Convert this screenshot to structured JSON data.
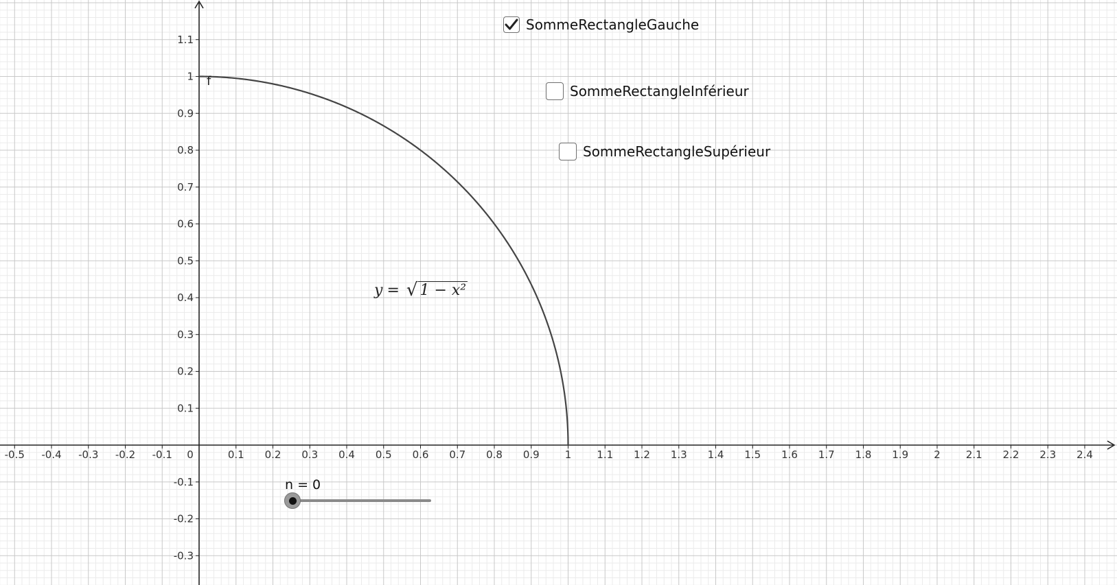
{
  "chart_data": {
    "type": "line",
    "function_label": "f",
    "equation": {
      "lhs": "y",
      "eq": "=",
      "radicand": "1 − x²"
    },
    "x_ticks": [
      "-0.5",
      "-0.4",
      "-0.3",
      "-0.2",
      "-0.1",
      "0",
      "0.1",
      "0.2",
      "0.3",
      "0.4",
      "0.5",
      "0.6",
      "0.7",
      "0.8",
      "0.9",
      "1",
      "1.1",
      "1.2",
      "1.3",
      "1.4",
      "1.5",
      "1.6",
      "1.7",
      "1.8",
      "1.9",
      "2",
      "2.1",
      "2.2",
      "2.3",
      "2.4"
    ],
    "y_ticks": [
      "1.1",
      "1",
      "0.9",
      "0.8",
      "0.7",
      "0.6",
      "0.5",
      "0.4",
      "0.3",
      "0.2",
      "0.1",
      "-0.1",
      "-0.2",
      "-0.3"
    ],
    "xlim": [
      -0.54,
      2.6
    ],
    "ylim": [
      -0.38,
      1.2
    ],
    "grid": true,
    "series": [
      {
        "x": [
          0,
          0.1,
          0.2,
          0.3,
          0.4,
          0.5,
          0.6,
          0.7,
          0.8,
          0.9,
          0.95,
          0.98,
          1
        ],
        "y": [
          1,
          0.995,
          0.98,
          0.954,
          0.917,
          0.866,
          0.8,
          0.714,
          0.6,
          0.436,
          0.312,
          0.199,
          0
        ]
      }
    ]
  },
  "checkboxes": [
    {
      "label": "SommeRectangleGauche",
      "checked": true
    },
    {
      "label": "SommeRectangleInférieur",
      "checked": false
    },
    {
      "label": "SommeRectangleSupérieur",
      "checked": false
    }
  ],
  "slider": {
    "label": "n = 0",
    "value": 0
  },
  "colors": {
    "curve": "#444444",
    "axis": "#222222",
    "grid_major": "#c8c8c8",
    "grid_minor": "#ebebeb"
  },
  "icons": {
    "check": "check-icon"
  }
}
